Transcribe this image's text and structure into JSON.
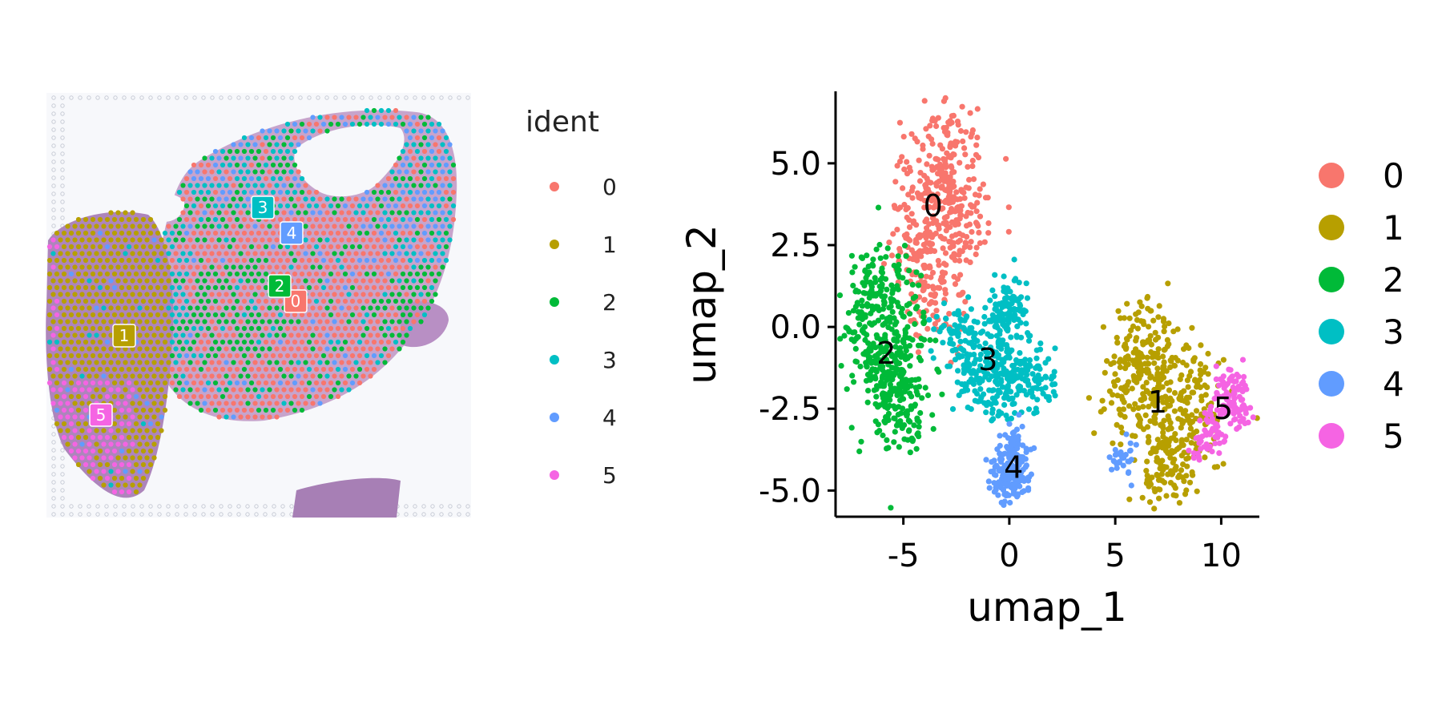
{
  "colors": {
    "0": "#F8766D",
    "1": "#B79F00",
    "2": "#00BA38",
    "3": "#00BFC4",
    "4": "#619CFF",
    "5": "#F564E3",
    "tissue": "#9b6fa9",
    "tissue_light": "#c9a9cf",
    "background_spots": "#c8ccd6"
  },
  "spatial_panel": {
    "legend_title": "ident",
    "legend_items": [
      "0",
      "1",
      "2",
      "3",
      "4",
      "5"
    ],
    "cluster_labels": [
      "0",
      "1",
      "2",
      "3",
      "4",
      "5"
    ]
  },
  "chart_data": {
    "type": "scatter",
    "xlabel": "umap_1",
    "ylabel": "umap_2",
    "xlim": [
      -8.2,
      11.8
    ],
    "ylim": [
      -5.8,
      7.2
    ],
    "xticks": [
      "-5",
      "0",
      "5",
      "10"
    ],
    "xtick_values": [
      -5,
      0,
      5,
      10
    ],
    "yticks": [
      "5.0",
      "2.5",
      "0.0",
      "-2.5",
      "-5.0"
    ],
    "ytick_values": [
      5.0,
      2.5,
      0.0,
      -2.5,
      -5.0
    ],
    "grid": false,
    "legend_position": "right",
    "series": [
      {
        "name": "0",
        "values": [
          [
            -3.2,
            3.6
          ],
          [
            -2.6,
            5.6
          ],
          [
            -4.0,
            1.8
          ],
          [
            -2.2,
            2.8
          ],
          [
            -3.6,
            4.8
          ],
          [
            -4.4,
            2.6
          ],
          [
            -2.9,
            4.2
          ],
          [
            -3.5,
            1.0
          ]
        ]
      },
      {
        "name": "1",
        "values": [
          [
            7.0,
            -2.2
          ],
          [
            6.2,
            -1.2
          ],
          [
            7.8,
            -3.8
          ],
          [
            8.5,
            -1.5
          ],
          [
            5.5,
            -2.0
          ],
          [
            7.2,
            -4.5
          ],
          [
            6.6,
            -0.4
          ],
          [
            8.8,
            -2.8
          ]
        ]
      },
      {
        "name": "2",
        "values": [
          [
            -5.8,
            -1.0
          ],
          [
            -6.4,
            0.6
          ],
          [
            -5.0,
            -2.2
          ],
          [
            -6.8,
            -0.4
          ],
          [
            -5.4,
            -2.8
          ],
          [
            -4.8,
            0.0
          ],
          [
            -6.0,
            1.5
          ],
          [
            -5.6,
            -1.6
          ]
        ]
      },
      {
        "name": "3",
        "values": [
          [
            -1.0,
            -0.8
          ],
          [
            -0.3,
            0.2
          ],
          [
            0.2,
            -1.6
          ],
          [
            -1.8,
            -1.6
          ],
          [
            1.2,
            -1.6
          ],
          [
            -0.5,
            -2.0
          ],
          [
            -2.4,
            -0.2
          ],
          [
            0.0,
            0.6
          ]
        ]
      },
      {
        "name": "4",
        "values": [
          [
            0.1,
            -4.4
          ],
          [
            -0.4,
            -4.0
          ],
          [
            0.5,
            -4.7
          ],
          [
            0.3,
            -3.6
          ],
          [
            -0.2,
            -4.8
          ],
          [
            0.6,
            -4.1
          ],
          [
            5.4,
            -4.0
          ]
        ]
      },
      {
        "name": "5",
        "values": [
          [
            10.1,
            -2.4
          ],
          [
            10.6,
            -2.0
          ],
          [
            9.6,
            -2.9
          ],
          [
            10.4,
            -1.6
          ],
          [
            9.3,
            -3.3
          ],
          [
            10.8,
            -2.6
          ]
        ]
      }
    ],
    "cluster_labels": [
      {
        "text": "0",
        "x": -3.6,
        "y": 3.7
      },
      {
        "text": "1",
        "x": 7.0,
        "y": -2.3
      },
      {
        "text": "2",
        "x": -5.8,
        "y": -0.8
      },
      {
        "text": "3",
        "x": -1.0,
        "y": -1.0
      },
      {
        "text": "4",
        "x": 0.2,
        "y": -4.3
      },
      {
        "text": "5",
        "x": 10.1,
        "y": -2.5
      }
    ],
    "legend": [
      "0",
      "1",
      "2",
      "3",
      "4",
      "5"
    ]
  }
}
